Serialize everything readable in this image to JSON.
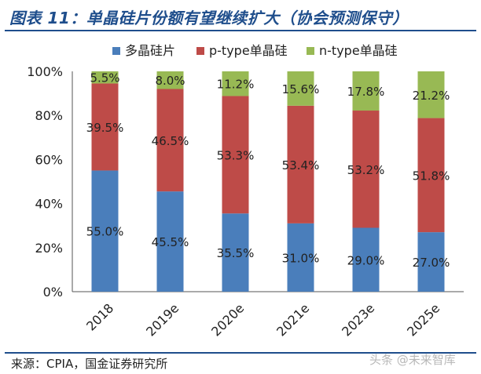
{
  "title": "图表 11：单晶硅片份额有望继续扩大（协会预测保守）",
  "source": "来源：CPIA，国金证券研究所",
  "watermark": "头条 @未来智库",
  "chart_data": {
    "type": "bar",
    "stacked": true,
    "categories": [
      "2018",
      "2019e",
      "2020e",
      "2021e",
      "2023e",
      "2025e"
    ],
    "series": [
      {
        "name": "多晶硅片",
        "color": "#4a7ebb",
        "values": [
          55.0,
          45.5,
          35.5,
          31.0,
          29.0,
          27.0
        ],
        "labels": [
          "55.0%",
          "45.5%",
          "35.5%",
          "31.0%",
          "29.0%",
          "27.0%"
        ]
      },
      {
        "name": "p-type单晶硅",
        "color": "#be4b48",
        "values": [
          39.5,
          46.5,
          53.3,
          53.4,
          53.2,
          51.8
        ],
        "labels": [
          "39.5%",
          "46.5%",
          "53.3%",
          "53.4%",
          "53.2%",
          "51.8%"
        ]
      },
      {
        "name": "n-type单晶硅",
        "color": "#98b954",
        "values": [
          5.5,
          8.0,
          11.2,
          15.6,
          17.8,
          21.2
        ],
        "labels": [
          "5.5%",
          "8.0%",
          "11.2%",
          "15.6%",
          "17.8%",
          "21.2%"
        ]
      }
    ],
    "yticks": [
      "0%",
      "20%",
      "40%",
      "60%",
      "80%",
      "100%"
    ],
    "ylim": [
      0,
      100
    ],
    "legend_position": "top",
    "grid": false
  }
}
